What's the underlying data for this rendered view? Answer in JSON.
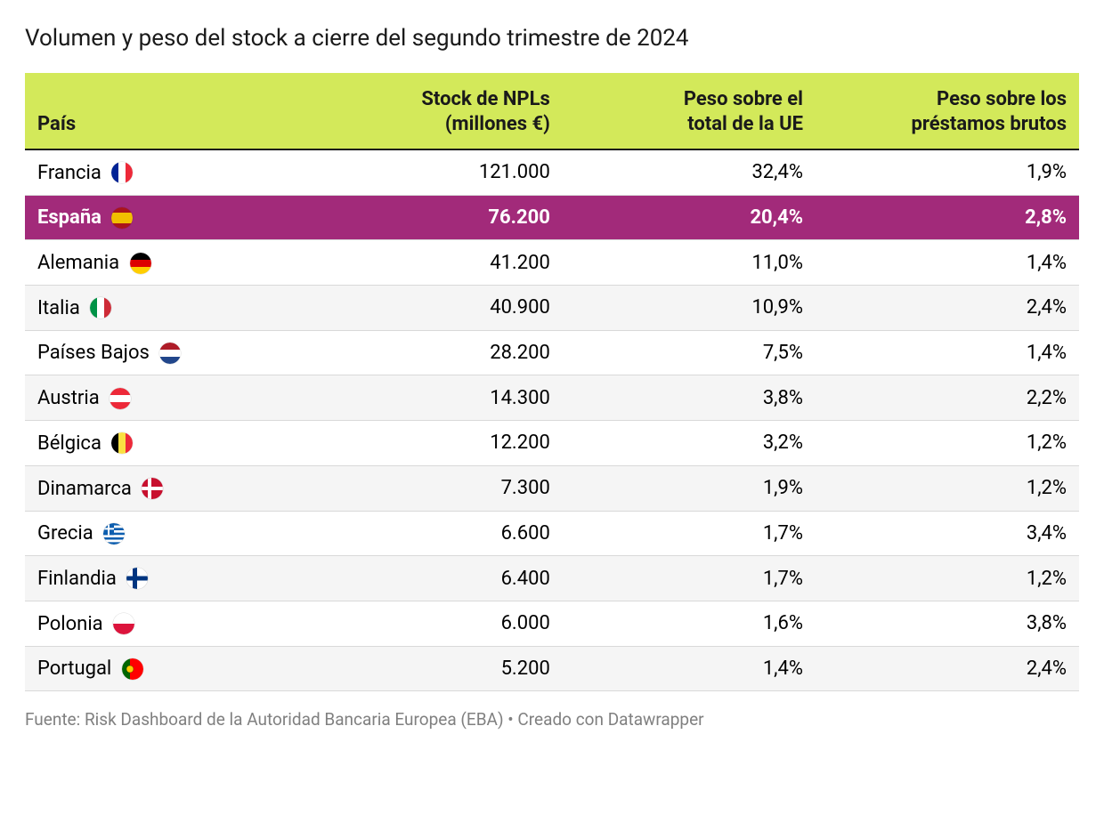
{
  "title": "Volumen y peso del stock a cierre del segundo trimestre de 2024",
  "footer": "Fuente: Risk Dashboard de la Autoridad Bancaria Europea (EBA) • Creado con Datawrapper",
  "table": {
    "type": "table",
    "header_bg": "#d3e95a",
    "header_border": "#1a1a1a",
    "row_border": "#d9d9d9",
    "even_row_bg": "#f5f5f5",
    "highlight_bg": "#a22a7a",
    "highlight_fg": "#ffffff",
    "text_color": "#1a1a1a",
    "font_size": 22,
    "title_font_size": 26,
    "footer_color": "#808080",
    "columns": {
      "country": "País",
      "stock_l1": "Stock de NPLs",
      "stock_l2": "(millones €)",
      "eu_l1": "Peso sobre el",
      "eu_l2": "total de la UE",
      "loans_l1": "Peso sobre los",
      "loans_l2": "préstamos brutos"
    },
    "rows": [
      {
        "country": "Francia",
        "flag": "france",
        "stock": "121.000",
        "eu": "32,4%",
        "loans": "1,9%",
        "highlight": false
      },
      {
        "country": "España",
        "flag": "spain",
        "stock": "76.200",
        "eu": "20,4%",
        "loans": "2,8%",
        "highlight": true
      },
      {
        "country": "Alemania",
        "flag": "germany",
        "stock": "41.200",
        "eu": "11,0%",
        "loans": "1,4%",
        "highlight": false
      },
      {
        "country": "Italia",
        "flag": "italy",
        "stock": "40.900",
        "eu": "10,9%",
        "loans": "2,4%",
        "highlight": false
      },
      {
        "country": "Países Bajos",
        "flag": "netherlands",
        "stock": "28.200",
        "eu": "7,5%",
        "loans": "1,4%",
        "highlight": false
      },
      {
        "country": "Austria",
        "flag": "austria",
        "stock": "14.300",
        "eu": "3,8%",
        "loans": "2,2%",
        "highlight": false
      },
      {
        "country": "Bélgica",
        "flag": "belgium",
        "stock": "12.200",
        "eu": "3,2%",
        "loans": "1,2%",
        "highlight": false
      },
      {
        "country": "Dinamarca",
        "flag": "denmark",
        "stock": "7.300",
        "eu": "1,9%",
        "loans": "1,2%",
        "highlight": false
      },
      {
        "country": "Grecia",
        "flag": "greece",
        "stock": "6.600",
        "eu": "1,7%",
        "loans": "3,4%",
        "highlight": false
      },
      {
        "country": "Finlandia",
        "flag": "finland",
        "stock": "6.400",
        "eu": "1,7%",
        "loans": "1,2%",
        "highlight": false
      },
      {
        "country": "Polonia",
        "flag": "poland",
        "stock": "6.000",
        "eu": "1,6%",
        "loans": "3,8%",
        "highlight": false
      },
      {
        "country": "Portugal",
        "flag": "portugal",
        "stock": "5.200",
        "eu": "1,4%",
        "loans": "2,4%",
        "highlight": false
      }
    ]
  },
  "flags": {
    "france": {
      "colors": [
        "#002395",
        "#ffffff",
        "#ed2939"
      ]
    },
    "spain": {
      "colors": [
        "#aa151b",
        "#f1bf00",
        "#aa151b"
      ]
    },
    "germany": {
      "colors": [
        "#000000",
        "#dd0000",
        "#ffce00"
      ]
    },
    "italy": {
      "colors": [
        "#009246",
        "#ffffff",
        "#ce2b37"
      ]
    },
    "netherlands": {
      "colors": [
        "#ae1c28",
        "#ffffff",
        "#21468b"
      ]
    },
    "austria": {
      "colors": [
        "#ed2939",
        "#ffffff",
        "#ed2939"
      ]
    },
    "belgium": {
      "colors": [
        "#000000",
        "#fae042",
        "#ed2939"
      ]
    },
    "denmark": {
      "bg": "#c8102e",
      "cross": "#ffffff"
    },
    "greece": {
      "bg": "#0d5eaf",
      "stripe": "#ffffff"
    },
    "finland": {
      "bg": "#ffffff",
      "cross": "#003580"
    },
    "poland": {
      "colors": [
        "#ffffff",
        "#dc143c"
      ]
    },
    "portugal": {
      "colors": [
        "#006600",
        "#ff0000"
      ],
      "emblem": "#ffce00"
    }
  }
}
